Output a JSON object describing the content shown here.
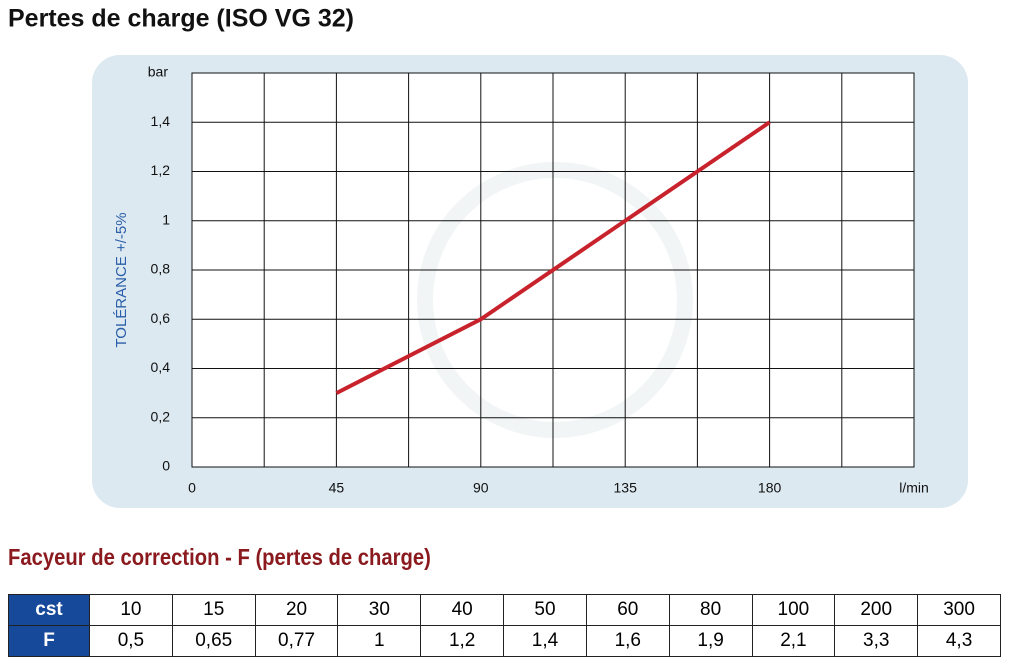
{
  "chart_data": {
    "type": "line",
    "title": "Pertes de charge (ISO VG 32)",
    "y_label": "TOLÉRANCE +/-5%",
    "y_unit": "bar",
    "x_unit": "l/min",
    "x": [
      45,
      90,
      135,
      180
    ],
    "values": [
      0.3,
      0.6,
      1.0,
      1.4
    ],
    "color": "#c8232c",
    "xlim": [
      0,
      225
    ],
    "xticks": [
      0,
      45,
      90,
      135,
      180
    ],
    "xminorticks": [
      22.5,
      67.5,
      112.5,
      157.5,
      202.5
    ],
    "ylim": [
      0,
      1.6
    ],
    "yticks": [
      0,
      {
        "value": 0.2,
        "label": "0,2"
      },
      {
        "value": 0.4,
        "label": "0,4"
      },
      {
        "value": 0.6,
        "label": "0,6"
      },
      {
        "value": 0.8,
        "label": "0,8"
      },
      1,
      {
        "value": 1.2,
        "label": "1,2"
      },
      {
        "value": 1.4,
        "label": "1,4"
      }
    ],
    "grid": true
  },
  "table": {
    "title": "Facyeur de correction - F (pertes de charge)",
    "rows": [
      [
        "cst",
        "10",
        "15",
        "20",
        "30",
        "40",
        "50",
        "60",
        "80",
        "100",
        "200",
        "300"
      ],
      [
        "F",
        "0,5",
        "0,65",
        "0,77",
        "1",
        "1,2",
        "1,4",
        "1,6",
        "1,9",
        "2,1",
        "3,3",
        "4,3"
      ]
    ]
  }
}
